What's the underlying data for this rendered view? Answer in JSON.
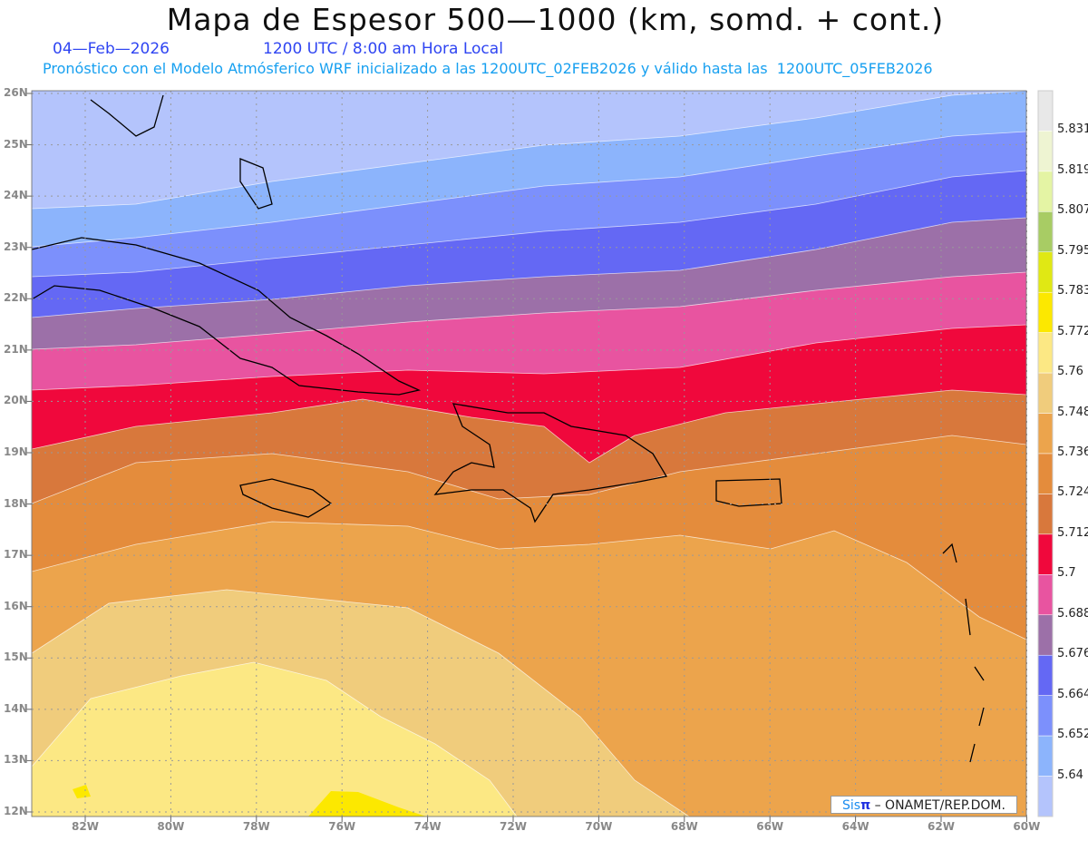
{
  "header": {
    "title": "Mapa de Espesor 500—1000 (km, somd. + cont.)",
    "date": "04—Feb—2026",
    "time": "1200 UTC / 8:00 am Hora Local",
    "forecast": "Pronóstico con el Modelo Atmósferico WRF inicializado a las 1200UTC_02FEB2026 y válido hasta las  1200UTC_05FEB2026"
  },
  "axes": {
    "lat_labels": [
      "26N",
      "25N",
      "24N",
      "23N",
      "22N",
      "21N",
      "20N",
      "19N",
      "18N",
      "17N",
      "16N",
      "15N",
      "14N",
      "13N",
      "12N"
    ],
    "lon_labels": [
      "82W",
      "80W",
      "78W",
      "76W",
      "74W",
      "72W",
      "70W",
      "68W",
      "66W",
      "64W",
      "62W",
      "60W"
    ]
  },
  "colorbar": {
    "labels": [
      "5.831",
      "5.819",
      "5.807",
      "5.795",
      "5.783",
      "5.772",
      "5.76",
      "5.748",
      "5.736",
      "5.724",
      "5.712",
      "5.7",
      "5.688",
      "5.676",
      "5.664",
      "5.652",
      "5.64"
    ],
    "colors": [
      "#e8e8e8",
      "#eef4d2",
      "#e4f4a4",
      "#a8cc64",
      "#e0e814",
      "#fce800",
      "#fce884",
      "#f0cc7c",
      "#eca44c",
      "#e48c3c",
      "#d8783c",
      "#f0083c",
      "#e854a0",
      "#9c70a8",
      "#6468f4",
      "#7c90fc",
      "#8cb4fc",
      "#b4c4fc"
    ]
  },
  "credit": {
    "brand": "Sis",
    "pi": "π",
    "text": " – ONAMET/REP.DOM.",
    "brand_color": "#1a8cf0"
  }
}
